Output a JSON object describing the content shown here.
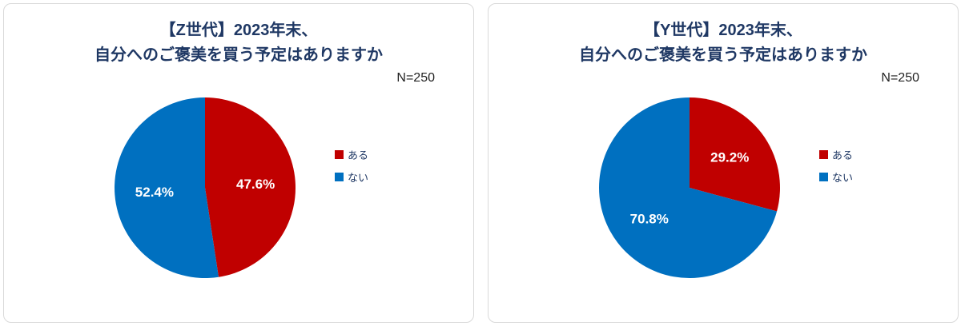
{
  "chart_data": [
    {
      "type": "pie",
      "title_line1": "【Z世代】2023年末、",
      "title_line2": "自分へのご褒美を買う予定はありますか",
      "annotation": "N=250",
      "labels": [
        "ある",
        "ない"
      ],
      "values": [
        47.6,
        52.4
      ],
      "data_labels": [
        "47.6%",
        "52.4%"
      ],
      "colors": [
        "#c00000",
        "#0070c0"
      ],
      "legend_position": "right",
      "start_angle_deg": 0,
      "direction": "clockwise"
    },
    {
      "type": "pie",
      "title_line1": "【Y世代】2023年末、",
      "title_line2": "自分へのご褒美を買う予定はありますか",
      "annotation": "N=250",
      "labels": [
        "ある",
        "ない"
      ],
      "values": [
        29.2,
        70.8
      ],
      "data_labels": [
        "29.2%",
        "70.8%"
      ],
      "colors": [
        "#c00000",
        "#0070c0"
      ],
      "legend_position": "right",
      "start_angle_deg": 0,
      "direction": "clockwise"
    }
  ]
}
